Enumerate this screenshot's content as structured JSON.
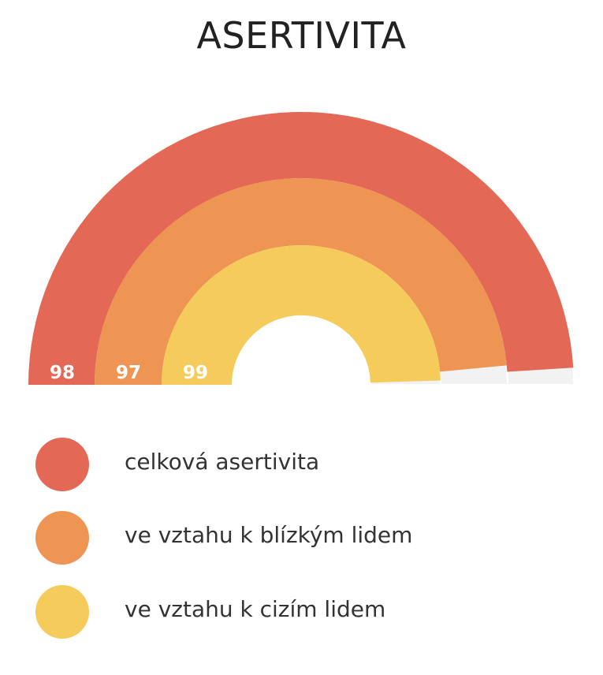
{
  "title": "ASERTIVITA",
  "chart_data": {
    "type": "radial-bar",
    "max": 100,
    "series": [
      {
        "name": "celková asertivita",
        "value": 98,
        "color": "#E36855"
      },
      {
        "name": "ve vztahu k blízkým lidem",
        "value": 97,
        "color": "#EF9554"
      },
      {
        "name": "ve vztahu k cizím lidem",
        "value": 99,
        "color": "#F5CB5C"
      }
    ],
    "track_color": "#F2F2F2",
    "legend_position": "bottom"
  }
}
